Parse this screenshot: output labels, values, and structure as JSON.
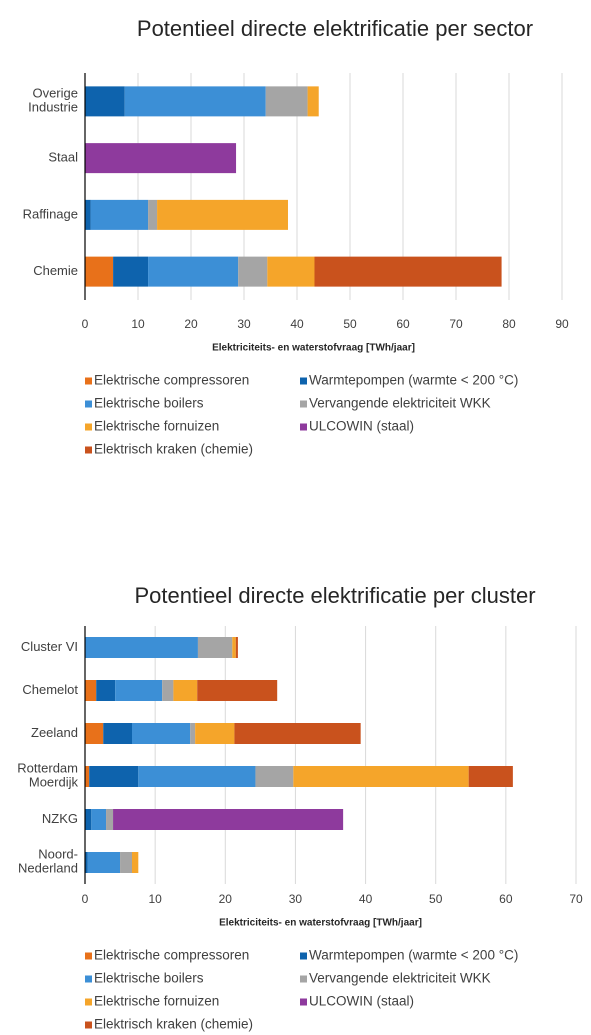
{
  "chart_data": [
    {
      "type": "stacked-barh",
      "title": "Potentieel directe elektrificatie per sector",
      "xlabel": "Elektriciteits- en waterstofvraag [TWh/jaar]",
      "categories": [
        "Overige\nIndustrie",
        "Staal",
        "Raffinage",
        "Chemie"
      ],
      "xlim": [
        0,
        90
      ],
      "xticks": [
        0,
        10,
        20,
        30,
        40,
        50,
        60,
        70,
        80,
        90
      ],
      "grid": true,
      "series": [
        {
          "name": "Elektrische compressoren",
          "color": "#e8711a",
          "values": [
            0,
            0,
            0,
            5.3
          ]
        },
        {
          "name": "Warmtepompen (warmte < 200 °C)",
          "color": "#0e63ad",
          "values": [
            7.5,
            0,
            1.1,
            6.6
          ]
        },
        {
          "name": "Elektrische boilers",
          "color": "#3c8fd6",
          "values": [
            26.6,
            0,
            10.8,
            17
          ]
        },
        {
          "name": "Vervangende elektriciteit WKK",
          "color": "#a5a5a5",
          "values": [
            7.9,
            0,
            1.7,
            5.5
          ]
        },
        {
          "name": "Elektrische fornuizen",
          "color": "#f5a52a",
          "values": [
            2.1,
            0,
            24.7,
            8.9
          ]
        },
        {
          "name": "ULCOWIN (staal)",
          "color": "#8e3a9d",
          "values": [
            0,
            28.5,
            0,
            0
          ]
        },
        {
          "name": "Elektrisch kraken (chemie)",
          "color": "#c9521d",
          "values": [
            0,
            0,
            0,
            35.3
          ]
        }
      ]
    },
    {
      "type": "stacked-barh",
      "title": "Potentieel directe elektrificatie per cluster",
      "xlabel": "Elektriciteits- en waterstofvraag [TWh/jaar]",
      "categories": [
        "Cluster VI",
        "Chemelot",
        "Zeeland",
        "Rotterdam\nMoerdijk",
        "NZKG",
        "Noord-\nNederland"
      ],
      "xlim": [
        0,
        70
      ],
      "xticks": [
        0,
        10,
        20,
        30,
        40,
        50,
        60,
        70
      ],
      "grid": true,
      "series": [
        {
          "name": "Elektrische compressoren",
          "color": "#e8711a",
          "values": [
            0,
            1.6,
            2.6,
            0.6,
            0,
            0
          ]
        },
        {
          "name": "Warmtepompen (warmte < 200 °C)",
          "color": "#0e63ad",
          "values": [
            0,
            2.7,
            4.1,
            7,
            0.9,
            0.4
          ]
        },
        {
          "name": "Elektrische boilers",
          "color": "#3c8fd6",
          "values": [
            16.1,
            6.7,
            8.3,
            16.7,
            2.1,
            4.6
          ]
        },
        {
          "name": "Vervangende elektriciteit WKK",
          "color": "#a5a5a5",
          "values": [
            4.9,
            1.6,
            0.7,
            5.4,
            1,
            1.7
          ]
        },
        {
          "name": "Elektrische fornuizen",
          "color": "#f5a52a",
          "values": [
            0.5,
            3.4,
            5.6,
            25,
            0,
            0.9
          ]
        },
        {
          "name": "ULCOWIN (staal)",
          "color": "#8e3a9d",
          "values": [
            0,
            0,
            0,
            0,
            32.8,
            0
          ]
        },
        {
          "name": "Elektrisch kraken (chemie)",
          "color": "#c9521d",
          "values": [
            0.3,
            11.4,
            18,
            6.3,
            0,
            0
          ]
        }
      ]
    }
  ]
}
